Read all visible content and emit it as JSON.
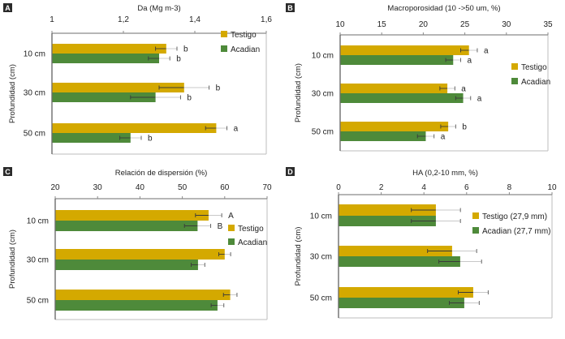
{
  "figure": {
    "categories": [
      "10 cm",
      "30 cm",
      "50 cm"
    ],
    "ylabel": "Profundidad (cm)",
    "colors": {
      "Testigo": "#D4A900",
      "Acadian": "#4E8A3A"
    }
  },
  "chart_data": [
    {
      "panel": "A",
      "type": "bar",
      "orientation": "horizontal",
      "title": "Da (Mg m-3)",
      "xlabel": "Da (Mg m-3)",
      "ylabel": "Profundidad (cm)",
      "categories": [
        "10 cm",
        "30 cm",
        "50 cm"
      ],
      "xlim": [
        1,
        1.6
      ],
      "ticks": [
        1,
        1.2,
        1.4,
        1.6
      ],
      "tick_labels": [
        "1",
        "1,2",
        "1,4",
        "1,6"
      ],
      "legend_position": "top-right",
      "series": [
        {
          "name": "Testigo",
          "legend": "Testigo",
          "values": [
            1.32,
            1.37,
            1.46
          ],
          "errors": [
            0.03,
            0.07,
            0.03
          ],
          "letters": [
            "b",
            "b",
            "a"
          ]
        },
        {
          "name": "Acadian",
          "legend": "Acadian",
          "values": [
            1.3,
            1.29,
            1.22
          ],
          "errors": [
            0.03,
            0.07,
            0.03
          ],
          "letters": [
            "b",
            "b",
            "b"
          ]
        }
      ],
      "grid": false
    },
    {
      "panel": "B",
      "type": "bar",
      "orientation": "horizontal",
      "title": "Macroporosidad (10 ->50 um, %)",
      "xlabel": "Macroporosidad (10 ->50 um, %)",
      "ylabel": "Profundidad (cm)",
      "categories": [
        "10 cm",
        "30 cm",
        "50 cm"
      ],
      "xlim": [
        10,
        35
      ],
      "ticks": [
        10,
        15,
        20,
        25,
        30,
        35
      ],
      "tick_labels": [
        "10",
        "15",
        "20",
        "25",
        "30",
        "35"
      ],
      "legend_position": "right",
      "series": [
        {
          "name": "Testigo",
          "legend": "Testigo",
          "values": [
            25.5,
            22.9,
            23.0
          ],
          "errors": [
            1.0,
            0.9,
            0.9
          ],
          "letters": [
            "a",
            "a",
            "b"
          ]
        },
        {
          "name": "Acadian",
          "legend": "Acadian",
          "values": [
            23.6,
            24.8,
            20.3
          ],
          "errors": [
            0.9,
            0.9,
            1.0
          ],
          "letters": [
            "a",
            "a",
            "a"
          ]
        }
      ],
      "grid": false
    },
    {
      "panel": "C",
      "type": "bar",
      "orientation": "horizontal",
      "title": "Relación de dispersión (%)",
      "xlabel": "Relación de dispersión (%)",
      "ylabel": "Profundidad (cm)",
      "categories": [
        "10 cm",
        "30 cm",
        "50 cm"
      ],
      "xlim": [
        20,
        70
      ],
      "ticks": [
        20,
        30,
        40,
        50,
        60,
        70
      ],
      "tick_labels": [
        "20",
        "30",
        "40",
        "50",
        "60",
        "70"
      ],
      "legend_position": "right",
      "series": [
        {
          "name": "Testigo",
          "legend": "Testigo",
          "values": [
            56.2,
            60.0,
            61.3
          ],
          "errors": [
            3.1,
            1.4,
            1.6
          ],
          "letters": [
            "A",
            "",
            ""
          ]
        },
        {
          "name": "Acadian",
          "legend": "Acadian",
          "values": [
            53.6,
            53.7,
            58.3
          ],
          "errors": [
            3.1,
            1.6,
            1.5
          ],
          "letters": [
            "B",
            "",
            ""
          ]
        }
      ],
      "grid": false
    },
    {
      "panel": "D",
      "type": "bar",
      "orientation": "horizontal",
      "title": "HA (0,2-10 mm, %)",
      "xlabel": "HA (0,2-10 mm, %)",
      "ylabel": "Profundidad (cm)",
      "categories": [
        "10 cm",
        "30 cm",
        "50 cm"
      ],
      "xlim": [
        0,
        10
      ],
      "ticks": [
        0,
        2,
        4,
        6,
        8,
        10
      ],
      "tick_labels": [
        "0",
        "2",
        "4",
        "6",
        "8",
        "10"
      ],
      "legend_position": "right",
      "series": [
        {
          "name": "Testigo",
          "legend": "Testigo (27,9 mm)",
          "values": [
            4.56,
            5.32,
            6.31
          ],
          "errors": [
            1.15,
            1.15,
            0.7
          ],
          "letters": [
            "",
            "",
            ""
          ]
        },
        {
          "name": "Acadian",
          "legend": "Acadian (27,7 mm)",
          "values": [
            4.56,
            5.7,
            5.89
          ],
          "errors": [
            1.15,
            1.0,
            0.7
          ],
          "letters": [
            "",
            "",
            ""
          ]
        }
      ],
      "grid": false
    }
  ]
}
